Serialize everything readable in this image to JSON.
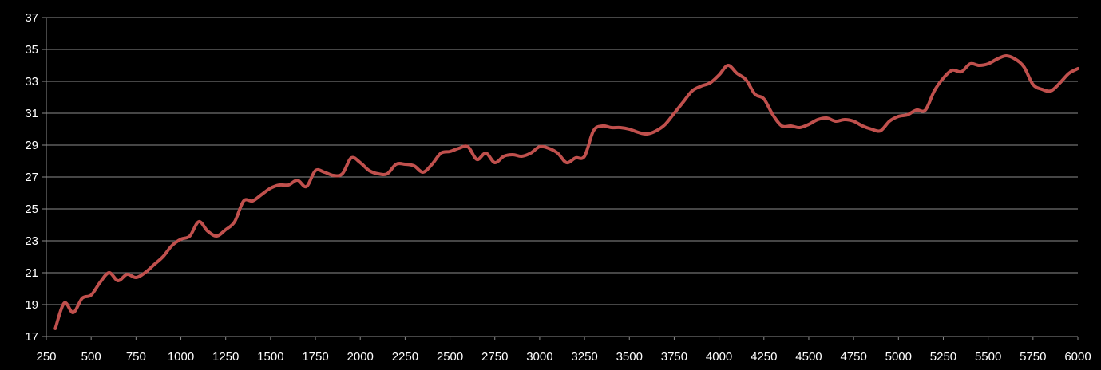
{
  "chart_data": {
    "type": "line",
    "title": "",
    "xlabel": "",
    "ylabel": "",
    "xlim": [
      250,
      6000
    ],
    "ylim": [
      17,
      37
    ],
    "x_ticks": [
      250,
      500,
      750,
      1000,
      1250,
      1500,
      1750,
      2000,
      2250,
      2500,
      2750,
      3000,
      3250,
      3500,
      3750,
      4000,
      4250,
      4500,
      4750,
      5000,
      5250,
      5500,
      5750,
      6000
    ],
    "x_tick_labels": [
      "250",
      "500",
      "750",
      "1000",
      "1250",
      "1500",
      "1750",
      "2000",
      "2250",
      "2500",
      "2750",
      "3000",
      "3250",
      "3500",
      "3750",
      "4000",
      "4250",
      "4500",
      "4750",
      "5000",
      "5250",
      "5500",
      "5750",
      "6000"
    ],
    "y_ticks": [
      17,
      19,
      21,
      23,
      25,
      27,
      29,
      31,
      33,
      35,
      37
    ],
    "y_tick_labels": [
      "17",
      "19",
      "21",
      "23",
      "25",
      "27",
      "29",
      "31",
      "33",
      "35",
      "37"
    ],
    "grid": true,
    "legend": "none",
    "colors": {
      "background": "#000000",
      "grid": "#8c8c8c",
      "axis": "#8c8c8c",
      "text": "#ffffff",
      "series": "#c0504d"
    },
    "series": [
      {
        "x": [
          300,
          350,
          400,
          450,
          500,
          550,
          600,
          650,
          700,
          750,
          800,
          850,
          900,
          950,
          1000,
          1050,
          1100,
          1150,
          1200,
          1250,
          1300,
          1350,
          1400,
          1450,
          1500,
          1550,
          1600,
          1650,
          1700,
          1750,
          1800,
          1850,
          1900,
          1950,
          2000,
          2050,
          2100,
          2150,
          2200,
          2250,
          2300,
          2350,
          2400,
          2450,
          2500,
          2550,
          2600,
          2650,
          2700,
          2750,
          2800,
          2850,
          2900,
          2950,
          3000,
          3050,
          3100,
          3150,
          3200,
          3250,
          3300,
          3350,
          3400,
          3450,
          3500,
          3550,
          3600,
          3650,
          3700,
          3750,
          3800,
          3850,
          3900,
          3950,
          4000,
          4050,
          4100,
          4150,
          4200,
          4250,
          4300,
          4350,
          4400,
          4450,
          4500,
          4550,
          4600,
          4650,
          4700,
          4750,
          4800,
          4850,
          4900,
          4950,
          5000,
          5050,
          5100,
          5150,
          5200,
          5250,
          5300,
          5350,
          5400,
          5450,
          5500,
          5550,
          5600,
          5650,
          5700,
          5750,
          5800,
          5850,
          5900,
          5950,
          6000
        ],
        "y": [
          17.5,
          19.1,
          18.5,
          19.4,
          19.6,
          20.4,
          21.0,
          20.5,
          20.9,
          20.7,
          21.0,
          21.5,
          22.0,
          22.7,
          23.1,
          23.3,
          24.2,
          23.6,
          23.3,
          23.7,
          24.2,
          25.5,
          25.5,
          25.9,
          26.3,
          26.5,
          26.5,
          26.8,
          26.4,
          27.4,
          27.3,
          27.1,
          27.2,
          28.2,
          27.9,
          27.4,
          27.2,
          27.2,
          27.8,
          27.8,
          27.7,
          27.3,
          27.8,
          28.5,
          28.6,
          28.8,
          28.9,
          28.1,
          28.5,
          27.9,
          28.3,
          28.4,
          28.3,
          28.5,
          28.9,
          28.8,
          28.5,
          27.9,
          28.2,
          28.3,
          29.9,
          30.2,
          30.1,
          30.1,
          30.0,
          29.8,
          29.7,
          29.9,
          30.3,
          31.0,
          31.7,
          32.4,
          32.7,
          32.9,
          33.4,
          34.0,
          33.5,
          33.1,
          32.2,
          31.9,
          30.9,
          30.2,
          30.2,
          30.1,
          30.3,
          30.6,
          30.7,
          30.5,
          30.6,
          30.5,
          30.2,
          30.0,
          29.9,
          30.5,
          30.8,
          30.9,
          31.2,
          31.2,
          32.4,
          33.2,
          33.7,
          33.6,
          34.1,
          34.0,
          34.1,
          34.4,
          34.6,
          34.4,
          33.9,
          32.8,
          32.5,
          32.4,
          32.9,
          33.5,
          33.8
        ]
      }
    ]
  }
}
